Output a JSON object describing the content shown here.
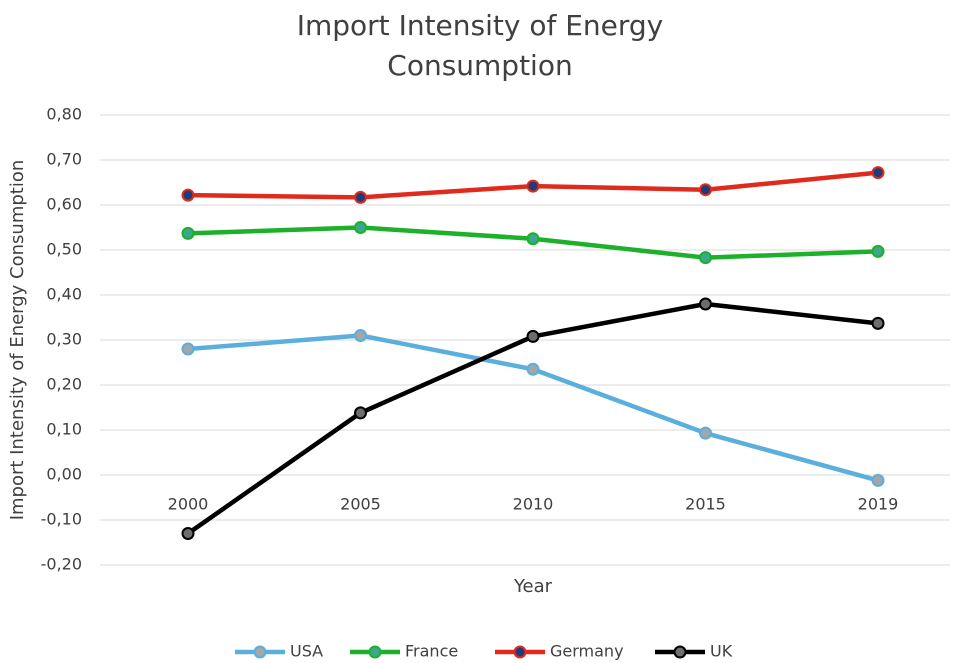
{
  "chart_data": {
    "type": "line",
    "title": "Import Intensity of Energy Consumption",
    "x_label": "Year",
    "y_label": "Import Intensity of  Energy  Consumption",
    "categories": [
      "2000",
      "2005",
      "2010",
      "2015",
      "2019"
    ],
    "series": [
      {
        "name": "USA",
        "color": "#5aafdc",
        "marker_color": "#a3a6ab",
        "values": [
          0.28,
          0.31,
          0.235,
          0.093,
          -0.012
        ]
      },
      {
        "name": "France",
        "color": "#1db02a",
        "marker_color": "#3aa88c",
        "values": [
          0.537,
          0.55,
          0.525,
          0.483,
          0.497
        ]
      },
      {
        "name": "Germany",
        "color": "#e02b1c",
        "marker_color": "#1f3c7a",
        "values": [
          0.622,
          0.617,
          0.642,
          0.634,
          0.672
        ]
      },
      {
        "name": "UK",
        "color": "#000000",
        "marker_color": "#6e6e6e",
        "values": [
          -0.13,
          0.138,
          0.308,
          0.38,
          0.337
        ]
      }
    ],
    "ylim": [
      -0.2,
      0.8
    ],
    "yticks": [
      {
        "value": -0.2,
        "label": "-0,20"
      },
      {
        "value": -0.1,
        "label": "-0,10"
      },
      {
        "value": 0,
        "label": "0,00"
      },
      {
        "value": 0.1,
        "label": "0,10"
      },
      {
        "value": 0.2,
        "label": "0,20"
      },
      {
        "value": 0.3,
        "label": "0,30"
      },
      {
        "value": 0.4,
        "label": "0,40"
      },
      {
        "value": 0.5,
        "label": "0,50"
      },
      {
        "value": 0.6,
        "label": "0,60"
      },
      {
        "value": 0.7,
        "label": "0,70"
      },
      {
        "value": 0.8,
        "label": "0,80"
      }
    ],
    "grid": true,
    "legend": "bottom"
  }
}
